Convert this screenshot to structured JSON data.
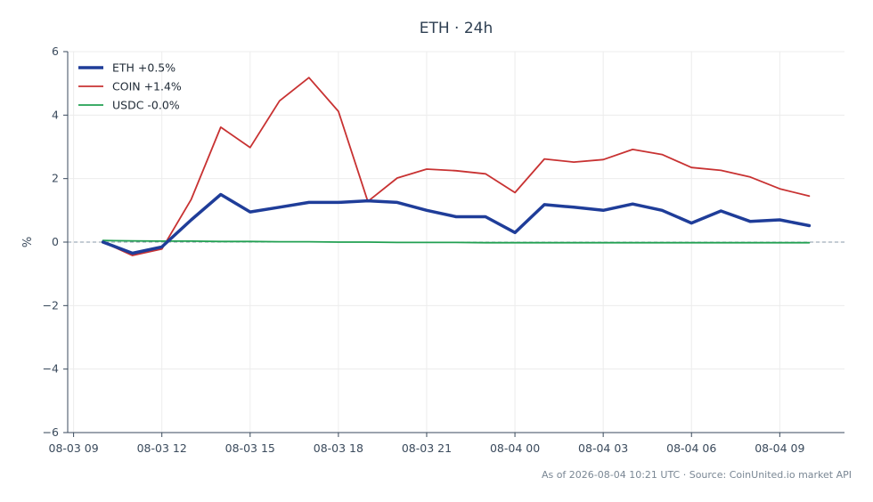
{
  "chart_data": {
    "type": "line",
    "title": "ETH · 24h",
    "xlabel": "",
    "ylabel": "%",
    "ylim": [
      -6,
      6
    ],
    "yticks": [
      "6",
      "4",
      "2",
      "0",
      "−2",
      "−4",
      "−6"
    ],
    "yticks_values": [
      6,
      4,
      2,
      0,
      -2,
      -4,
      -6
    ],
    "xticks": [
      "08-03 09",
      "08-03 12",
      "08-03 15",
      "08-03 18",
      "08-03 21",
      "08-04 00",
      "08-04 03",
      "08-04 06",
      "08-04 09"
    ],
    "xticks_hours": [
      9,
      12,
      15,
      18,
      21,
      24,
      27,
      30,
      33
    ],
    "xlim_hours": [
      8.8,
      35.2
    ],
    "x_hours": [
      10,
      11,
      12,
      13,
      14,
      15,
      16,
      17,
      18,
      19,
      20,
      21,
      22,
      23,
      24,
      25,
      26,
      27,
      28,
      29,
      30,
      31,
      32,
      33,
      34
    ],
    "grid": true,
    "legend_position": "top-left",
    "series": [
      {
        "name": "ETH +0.5%",
        "color": "#1f3d99",
        "values": [
          0.0,
          -0.35,
          -0.15,
          0.7,
          1.5,
          0.95,
          1.1,
          1.25,
          1.25,
          1.3,
          1.25,
          1.0,
          0.8,
          0.8,
          0.3,
          1.18,
          1.1,
          1.0,
          1.2,
          1.0,
          0.6,
          0.98,
          0.65,
          0.7,
          0.52
        ]
      },
      {
        "name": "COIN +1.4%",
        "color": "#c83232",
        "values": [
          0.0,
          -0.42,
          -0.22,
          1.35,
          3.62,
          2.98,
          4.45,
          5.18,
          4.12,
          1.28,
          2.02,
          2.3,
          2.25,
          2.15,
          1.56,
          2.62,
          2.52,
          2.6,
          2.92,
          2.76,
          2.35,
          2.26,
          2.05,
          1.68,
          1.45
        ]
      },
      {
        "name": "USDC -0.0%",
        "color": "#22a052",
        "values": [
          0.05,
          0.04,
          0.03,
          0.03,
          0.02,
          0.02,
          0.01,
          0.01,
          0.0,
          0.0,
          -0.01,
          -0.01,
          -0.01,
          -0.02,
          -0.02,
          -0.02,
          -0.02,
          -0.02,
          -0.02,
          -0.02,
          -0.02,
          -0.02,
          -0.02,
          -0.02,
          -0.02
        ]
      }
    ],
    "zero_line_color": "#8899aa",
    "footer": "As of 2026-08-04 10:21 UTC · Source: CoinUnited.io market API"
  }
}
